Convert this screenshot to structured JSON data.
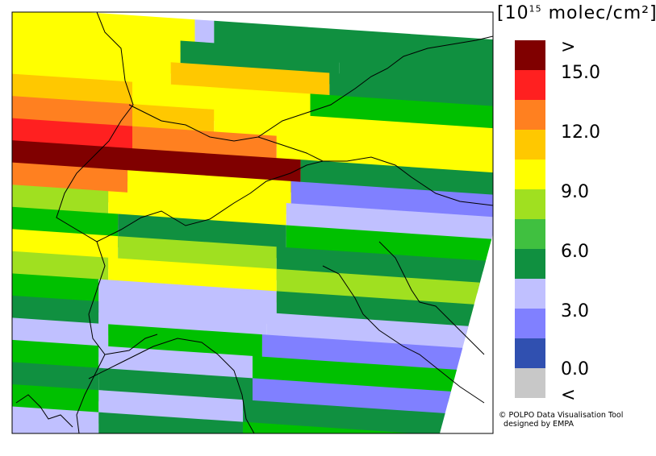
{
  "colorbar": {
    "unit_prefix": "[10",
    "unit_exp": "15",
    "unit_suffix": " molec/cm²]",
    "segments": [
      {
        "color": "#800000"
      },
      {
        "color": "#ff2020"
      },
      {
        "color": "#ff8020"
      },
      {
        "color": "#ffc800"
      },
      {
        "color": "#ffff00"
      },
      {
        "color": "#a0e020"
      },
      {
        "color": "#40c040"
      },
      {
        "color": "#109040"
      },
      {
        "color": "#c0c0ff"
      },
      {
        "color": "#8080ff"
      },
      {
        "color": "#3050b0"
      },
      {
        "color": "#c8c8c8"
      }
    ],
    "labels": {
      "over": ">",
      "l15": "15.0",
      "l12": "12.0",
      "l9": "9.0",
      "l6": "6.0",
      "l3": "3.0",
      "l0": "0.0",
      "under": "<"
    }
  },
  "credit": {
    "line1": "© POLPO Data Visualisation Tool",
    "line2": "  designed by EMPA"
  },
  "map": {
    "strips": [
      {
        "segs": [
          {
            "c": "#ffff00",
            "to": 0.38
          },
          {
            "c": "#c0c0ff",
            "to": 0.42
          },
          {
            "c": "#109040",
            "to": 1
          }
        ]
      },
      {
        "segs": [
          {
            "c": "#ffff00",
            "to": 0.35
          },
          {
            "c": "#109040",
            "to": 0.68
          },
          {
            "c": "#109040",
            "to": 1
          }
        ]
      },
      {
        "segs": [
          {
            "c": "#ffff00",
            "to": 0.33
          },
          {
            "c": "#ffc800",
            "to": 0.66
          },
          {
            "c": "#109040",
            "to": 1
          }
        ]
      },
      {
        "segs": [
          {
            "c": "#ffc800",
            "to": 0.25
          },
          {
            "c": "#ffff00",
            "to": 0.62
          },
          {
            "c": "#00c000",
            "to": 1
          }
        ]
      },
      {
        "segs": [
          {
            "c": "#ff8020",
            "to": 0.25
          },
          {
            "c": "#ffc800",
            "to": 0.42
          },
          {
            "c": "#ffff00",
            "to": 1
          }
        ]
      },
      {
        "segs": [
          {
            "c": "#ff2020",
            "to": 0.25
          },
          {
            "c": "#ff8020",
            "to": 0.55
          },
          {
            "c": "#ffff00",
            "to": 1
          }
        ]
      },
      {
        "segs": [
          {
            "c": "#800000",
            "to": 0.25
          },
          {
            "c": "#800000",
            "to": 0.6
          },
          {
            "c": "#109040",
            "to": 1
          }
        ]
      },
      {
        "segs": [
          {
            "c": "#ff8020",
            "to": 0.24
          },
          {
            "c": "#ffff00",
            "to": 0.58
          },
          {
            "c": "#8080ff",
            "to": 1
          }
        ]
      },
      {
        "segs": [
          {
            "c": "#a0e020",
            "to": 0.2
          },
          {
            "c": "#ffff00",
            "to": 0.57
          },
          {
            "c": "#c0c0ff",
            "to": 1
          }
        ]
      },
      {
        "segs": [
          {
            "c": "#00c000",
            "to": 0.22
          },
          {
            "c": "#109040",
            "to": 0.57
          },
          {
            "c": "#00c000",
            "to": 1
          }
        ]
      },
      {
        "segs": [
          {
            "c": "#ffff00",
            "to": 0.22
          },
          {
            "c": "#a0e020",
            "to": 0.55
          },
          {
            "c": "#109040",
            "to": 1
          }
        ]
      },
      {
        "segs": [
          {
            "c": "#a0e020",
            "to": 0.2
          },
          {
            "c": "#ffff00",
            "to": 0.55
          },
          {
            "c": "#a0e020",
            "to": 1
          }
        ]
      },
      {
        "segs": [
          {
            "c": "#00c000",
            "to": 0.18
          },
          {
            "c": "#c0c0ff",
            "to": 0.55
          },
          {
            "c": "#109040",
            "to": 1
          }
        ]
      },
      {
        "segs": [
          {
            "c": "#109040",
            "to": 0.18
          },
          {
            "c": "#c0c0ff",
            "to": 0.53
          },
          {
            "c": "#c0c0ff",
            "to": 1
          }
        ]
      },
      {
        "segs": [
          {
            "c": "#c0c0ff",
            "to": 0.2
          },
          {
            "c": "#00c000",
            "to": 0.52
          },
          {
            "c": "#8080ff",
            "to": 1
          }
        ]
      },
      {
        "segs": [
          {
            "c": "#00c000",
            "to": 0.18
          },
          {
            "c": "#c0c0ff",
            "to": 0.5
          },
          {
            "c": "#00c000",
            "to": 1
          }
        ]
      },
      {
        "segs": [
          {
            "c": "#109040",
            "to": 0.18
          },
          {
            "c": "#109040",
            "to": 0.5
          },
          {
            "c": "#8080ff",
            "to": 1
          }
        ]
      },
      {
        "segs": [
          {
            "c": "#00c000",
            "to": 0.18
          },
          {
            "c": "#c0c0ff",
            "to": 0.48
          },
          {
            "c": "#109040",
            "to": 1
          }
        ]
      },
      {
        "segs": [
          {
            "c": "#c0c0ff",
            "to": 0.18
          },
          {
            "c": "#109040",
            "to": 0.48
          },
          {
            "c": "#00c000",
            "to": 1
          }
        ]
      }
    ]
  }
}
